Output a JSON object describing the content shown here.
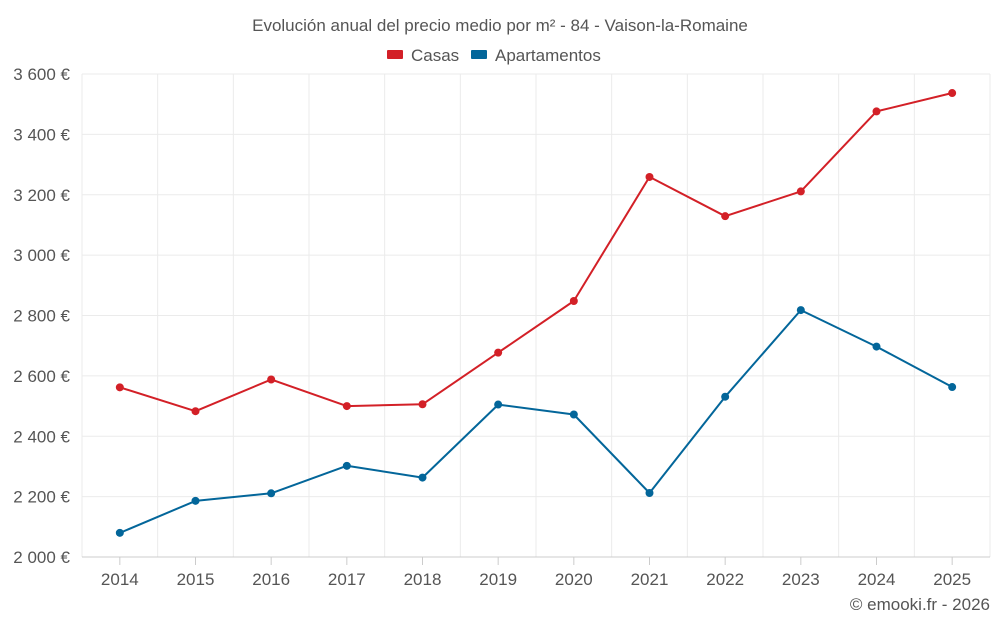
{
  "chart_data": {
    "type": "line",
    "title": "Evolución anual del precio medio por m² - 84 - Vaison-la-Romaine",
    "categories": [
      "2014",
      "2015",
      "2016",
      "2017",
      "2018",
      "2019",
      "2020",
      "2021",
      "2022",
      "2023",
      "2024",
      "2025"
    ],
    "series": [
      {
        "name": "Casas",
        "color": "#d32027",
        "values": [
          2562,
          2483,
          2588,
          2500,
          2506,
          2677,
          2848,
          3259,
          3129,
          3211,
          3476,
          3537
        ]
      },
      {
        "name": "Apartamentos",
        "color": "#03669a",
        "values": [
          2080,
          2186,
          2211,
          2302,
          2263,
          2505,
          2472,
          2212,
          2531,
          2818,
          2697,
          2563
        ]
      }
    ],
    "y_ticks": [
      2000,
      2200,
      2400,
      2600,
      2800,
      3000,
      3200,
      3400,
      3600
    ],
    "y_tick_labels": [
      "2 000 €",
      "2 200 €",
      "2 400 €",
      "2 600 €",
      "2 800 €",
      "3 000 €",
      "3 200 €",
      "3 400 €",
      "3 600 €"
    ],
    "ylim": [
      2000,
      3600
    ],
    "xlabel": "",
    "ylabel": "",
    "grid": true,
    "legend_position": "top-center"
  },
  "credit": "© emooki.fr - 2026",
  "colors": {
    "grid": "#ebebeb",
    "axis": "#cccccc",
    "text": "#555555"
  }
}
